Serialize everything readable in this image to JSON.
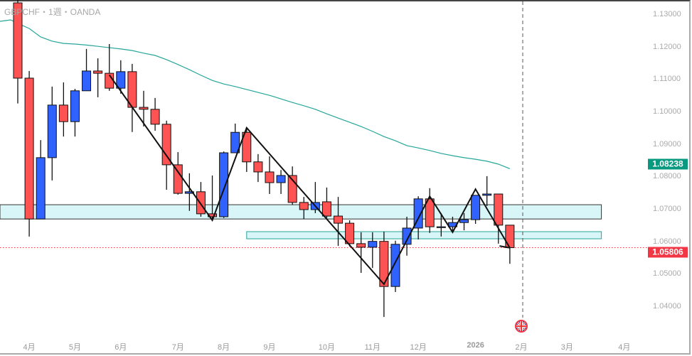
{
  "header": {
    "title": "GBPCHF・1週・OANDA"
  },
  "colors": {
    "up": "#2f62ff",
    "down": "#ff5252",
    "ma": "#26a69a",
    "zone_fill": "#d8f5f7",
    "last_price": "#f23645",
    "ma_label": "#089981"
  },
  "price_axis": {
    "ticks": [
      "1.13000",
      "1.12000",
      "1.11000",
      "1.10000",
      "1.09000",
      "1.08000",
      "1.07000",
      "1.06000",
      "1.05000",
      "1.04000"
    ],
    "ma_label": "1.08238",
    "last_price_label": "1.05806"
  },
  "time_axis": {
    "ticks": [
      {
        "label": "4月",
        "index": 1
      },
      {
        "label": "5月",
        "index": 5
      },
      {
        "label": "6月",
        "index": 9
      },
      {
        "label": "7月",
        "index": 14
      },
      {
        "label": "8月",
        "index": 18
      },
      {
        "label": "9月",
        "index": 22
      },
      {
        "label": "10月",
        "index": 27
      },
      {
        "label": "11月",
        "index": 31
      },
      {
        "label": "12月",
        "index": 35
      },
      {
        "label": "2026",
        "index": 40,
        "bold": true
      },
      {
        "label": "2月",
        "index": 44
      },
      {
        "label": "3月",
        "index": 48
      },
      {
        "label": "4月",
        "index": 53
      }
    ]
  },
  "chart_data": {
    "type": "candlestick",
    "title": "GBPCHF・1週・OANDA",
    "ylim": [
      1.035,
      1.135
    ],
    "ohlc": [
      [
        1.1335,
        1.1345,
        1.1025,
        1.1103
      ],
      [
        1.1103,
        1.1125,
        1.0615,
        1.0669
      ],
      [
        1.0669,
        1.0912,
        1.0669,
        1.0858
      ],
      [
        1.0858,
        1.1077,
        1.0788,
        1.102
      ],
      [
        1.102,
        1.109,
        1.0923,
        1.0969
      ],
      [
        1.0969,
        1.107,
        1.0923,
        1.1064
      ],
      [
        1.1064,
        1.1193,
        1.1064,
        1.1125
      ],
      [
        1.1125,
        1.1164,
        1.1044,
        1.1118
      ],
      [
        1.1118,
        1.1208,
        1.1064,
        1.1072
      ],
      [
        1.1072,
        1.1158,
        1.1055,
        1.1123
      ],
      [
        1.1123,
        1.1147,
        1.0937,
        1.1013
      ],
      [
        1.1013,
        1.1064,
        1.0954,
        1.1007
      ],
      [
        1.1007,
        1.1042,
        1.0941,
        1.0961
      ],
      [
        1.0961,
        1.0972,
        1.0759,
        1.0836
      ],
      [
        1.0836,
        1.0875,
        1.0744,
        1.0748
      ],
      [
        1.0748,
        1.081,
        1.0694,
        1.0753
      ],
      [
        1.0753,
        1.0783,
        1.0676,
        1.0685
      ],
      [
        1.0685,
        1.0803,
        1.0665,
        1.0676
      ],
      [
        1.0676,
        1.0877,
        1.0672,
        1.0873
      ],
      [
        1.0873,
        1.0963,
        1.0873,
        1.0936
      ],
      [
        1.0936,
        1.095,
        1.0814,
        1.0845
      ],
      [
        1.0845,
        1.0869,
        1.0783,
        1.0814
      ],
      [
        1.0814,
        1.0862,
        1.0746,
        1.0781
      ],
      [
        1.0781,
        1.082,
        1.0746,
        1.0803
      ],
      [
        1.0803,
        1.0831,
        1.0713,
        1.072
      ],
      [
        1.072,
        1.0737,
        1.0669,
        1.0698
      ],
      [
        1.0698,
        1.0783,
        1.0687,
        1.072
      ],
      [
        1.0722,
        1.0766,
        1.0672,
        1.0678
      ],
      [
        1.0678,
        1.0737,
        1.0586,
        1.0656
      ],
      [
        1.0656,
        1.0665,
        1.0584,
        1.0593
      ],
      [
        1.0593,
        1.0628,
        1.0503,
        1.0582
      ],
      [
        1.0582,
        1.0628,
        1.0518,
        1.06
      ],
      [
        1.06,
        1.063,
        1.0367,
        1.0461
      ],
      [
        1.0461,
        1.0602,
        1.0444,
        1.0591
      ],
      [
        1.0591,
        1.0676,
        1.0556,
        1.0641
      ],
      [
        1.0641,
        1.0739,
        1.0606,
        1.0731
      ],
      [
        1.0731,
        1.0764,
        1.0626,
        1.0645
      ],
      [
        1.0645,
        1.0687,
        1.0615,
        1.0645
      ],
      [
        1.0645,
        1.0676,
        1.0632,
        1.0658
      ],
      [
        1.0658,
        1.0687,
        1.0634,
        1.0667
      ],
      [
        1.0667,
        1.0742,
        1.0654,
        1.0742
      ],
      [
        1.0742,
        1.0801,
        1.0709,
        1.0746
      ],
      [
        1.0746,
        1.0746,
        1.0593,
        1.065
      ],
      [
        1.065,
        1.065,
        1.0531,
        1.05806
      ]
    ],
    "ma": [
      1.1272,
      1.1256,
      1.123,
      1.1217,
      1.121,
      1.1208,
      1.1205,
      1.1201,
      1.1197,
      1.1193,
      1.1188,
      1.118,
      1.1173,
      1.116,
      1.1145,
      1.1129,
      1.1112,
      1.1096,
      1.1085,
      1.1077,
      1.1068,
      1.1059,
      1.105,
      1.1039,
      1.1028,
      1.1018,
      1.1007,
      1.0993,
      1.098,
      1.0967,
      1.0954,
      1.0939,
      1.0923,
      1.091,
      1.0895,
      1.0888,
      1.088,
      1.0871,
      1.0864,
      1.0858,
      1.0853,
      1.0847,
      1.0838,
      1.08238
    ],
    "zigzag": [
      [
        8,
        1.1113
      ],
      [
        17,
        1.0665
      ],
      [
        20,
        1.095
      ],
      [
        32,
        1.0468
      ],
      [
        36,
        1.0739
      ],
      [
        38,
        1.0628
      ],
      [
        40,
        1.0761
      ],
      [
        43,
        1.058
      ]
    ],
    "zigzag_tail": [
      [
        42.1,
        1.0586
      ],
      [
        43,
        1.058
      ]
    ],
    "zones": [
      {
        "from_index": -1.6,
        "to_index": 51,
        "top": 1.0713,
        "bottom": 1.0669,
        "border": "#333333"
      },
      {
        "from_index": 20,
        "to_index": 51,
        "top": 1.063,
        "bottom": 1.0608,
        "border": "#26a69a"
      }
    ],
    "last_price": 1.05806,
    "current_bar_marker_index": 44.3
  }
}
